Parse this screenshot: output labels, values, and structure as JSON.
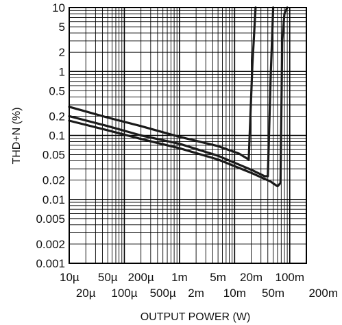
{
  "chart_data": {
    "type": "line",
    "title": "",
    "xlabel": "OUTPUT POWER (W)",
    "ylabel": "THD+N (%)",
    "x_scale": "log",
    "y_scale": "log",
    "xlim": [
      1e-05,
      0.2
    ],
    "ylim": [
      0.001,
      10
    ],
    "grid": true,
    "x_ticks": [
      {
        "value": 1e-05,
        "label": "10µ",
        "row": 1
      },
      {
        "value": 2e-05,
        "label": "20µ",
        "row": 2
      },
      {
        "value": 5e-05,
        "label": "50µ",
        "row": 1
      },
      {
        "value": 0.0001,
        "label": "100µ",
        "row": 2
      },
      {
        "value": 0.0002,
        "label": "200µ",
        "row": 1
      },
      {
        "value": 0.0005,
        "label": "500µ",
        "row": 2
      },
      {
        "value": 0.001,
        "label": "1m",
        "row": 1
      },
      {
        "value": 0.002,
        "label": "2m",
        "row": 2
      },
      {
        "value": 0.005,
        "label": "5m",
        "row": 1
      },
      {
        "value": 0.01,
        "label": "10m",
        "row": 2
      },
      {
        "value": 0.02,
        "label": "20m",
        "row": 1
      },
      {
        "value": 0.05,
        "label": "50m",
        "row": 2
      },
      {
        "value": 0.1,
        "label": "100m",
        "row": 1
      },
      {
        "value": 0.2,
        "label": "200m",
        "row": 2
      }
    ],
    "y_ticks": [
      {
        "value": 10,
        "label": "10"
      },
      {
        "value": 5,
        "label": "5"
      },
      {
        "value": 2,
        "label": "2"
      },
      {
        "value": 1,
        "label": "1"
      },
      {
        "value": 0.5,
        "label": "0.5"
      },
      {
        "value": 0.2,
        "label": "0.2"
      },
      {
        "value": 0.1,
        "label": "0.1"
      },
      {
        "value": 0.05,
        "label": "0.05"
      },
      {
        "value": 0.02,
        "label": "0.02"
      },
      {
        "value": 0.01,
        "label": "0.01"
      },
      {
        "value": 0.005,
        "label": "0.005"
      },
      {
        "value": 0.002,
        "label": "0.002"
      },
      {
        "value": 0.001,
        "label": "0.001"
      }
    ],
    "series": [
      {
        "points": [
          [
            1e-05,
            0.28
          ],
          [
            5e-05,
            0.19
          ],
          [
            0.0002,
            0.14
          ],
          [
            0.001,
            0.095
          ],
          [
            0.005,
            0.068
          ],
          [
            0.012,
            0.052
          ],
          [
            0.018,
            0.042
          ],
          [
            0.021,
            1.3
          ],
          [
            0.024,
            10
          ]
        ]
      },
      {
        "points": [
          [
            1e-05,
            0.2
          ],
          [
            5e-05,
            0.14
          ],
          [
            0.0002,
            0.1
          ],
          [
            0.001,
            0.074
          ],
          [
            0.005,
            0.048
          ],
          [
            0.02,
            0.029
          ],
          [
            0.035,
            0.023
          ],
          [
            0.04,
            0.023
          ],
          [
            0.045,
            0.8
          ],
          [
            0.05,
            10
          ]
        ]
      },
      {
        "points": [
          [
            1e-05,
            0.17
          ],
          [
            5e-05,
            0.12
          ],
          [
            0.0002,
            0.088
          ],
          [
            0.001,
            0.063
          ],
          [
            0.005,
            0.042
          ],
          [
            0.02,
            0.026
          ],
          [
            0.045,
            0.019
          ],
          [
            0.06,
            0.016
          ],
          [
            0.068,
            0.018
          ],
          [
            0.073,
            3
          ],
          [
            0.08,
            8
          ],
          [
            0.09,
            10
          ]
        ]
      }
    ],
    "colors": {
      "line": "#1a1a1a",
      "grid": "#000000",
      "background": "#ffffff"
    }
  }
}
